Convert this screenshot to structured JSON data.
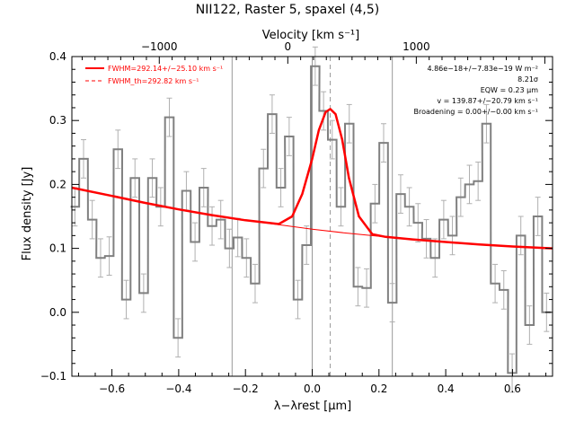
{
  "chart_data": {
    "type": "line",
    "title": "NII122, Raster 5, spaxel (4,5)",
    "xlabel": "λ−λrest [μm]",
    "ylabel": "Flux density [Jy]",
    "top_axis_label": "Velocity [km s⁻¹]",
    "xlim": [
      -0.72,
      0.72
    ],
    "ylim": [
      -0.1,
      0.4
    ],
    "vlim": [
      -1680,
      2060
    ],
    "x_ticks": [
      -0.6,
      -0.4,
      -0.2,
      0.0,
      0.2,
      0.4,
      0.6
    ],
    "x_tick_labels": [
      "−0.6",
      "−0.4",
      "−0.2",
      "0.0",
      "0.2",
      "0.4",
      "0.6"
    ],
    "y_ticks": [
      -0.1,
      0.0,
      0.1,
      0.2,
      0.3,
      0.4
    ],
    "y_tick_labels": [
      "−0.1",
      "0.0",
      "0.1",
      "0.2",
      "0.3",
      "0.4"
    ],
    "v_ticks": [
      -1000,
      0,
      1000
    ],
    "v_tick_labels": [
      "−1000",
      "0",
      "1000"
    ],
    "vertical_lines_solid": [
      -0.24,
      0.0,
      0.24
    ],
    "vertical_line_dashed": 0.054,
    "legend": {
      "placement": "top-left",
      "entries": [
        {
          "text": "FWHM=292.14+/−25.10 km s⁻¹",
          "style": "solid"
        },
        {
          "text": "FWHM_th=292.82 km s⁻¹",
          "style": "dashed"
        }
      ]
    },
    "annotations": [
      "4.86e−18+/−7.83e−19 W m⁻²",
      "8.21σ",
      "EQW = 0.23 μm",
      "v = 139.87+/−20.79 km s⁻¹",
      "Broadening = 0.00+/−0.00 km s⁻¹"
    ],
    "grid": false,
    "colors": {
      "data": "#808080",
      "fit": "#ff0000",
      "errorbar": "#b0b0b0",
      "axes": "#000000"
    },
    "series": [
      {
        "name": "data",
        "step": true,
        "bin_width": 0.0257,
        "x": [
          -0.711,
          -0.685,
          -0.659,
          -0.634,
          -0.608,
          -0.582,
          -0.557,
          -0.531,
          -0.505,
          -0.479,
          -0.454,
          -0.428,
          -0.402,
          -0.377,
          -0.351,
          -0.325,
          -0.3,
          -0.274,
          -0.248,
          -0.223,
          -0.197,
          -0.171,
          -0.146,
          -0.12,
          -0.094,
          -0.069,
          -0.043,
          -0.017,
          0.009,
          0.034,
          0.06,
          0.086,
          0.111,
          0.137,
          0.163,
          0.188,
          0.214,
          0.24,
          0.265,
          0.291,
          0.317,
          0.342,
          0.368,
          0.394,
          0.42,
          0.445,
          0.471,
          0.497,
          0.522,
          0.548,
          0.574,
          0.599,
          0.625,
          0.651,
          0.676,
          0.702
        ],
        "y": [
          0.165,
          0.24,
          0.145,
          0.085,
          0.088,
          0.255,
          0.02,
          0.21,
          0.03,
          0.21,
          0.165,
          0.305,
          -0.04,
          0.19,
          0.11,
          0.195,
          0.135,
          0.145,
          0.1,
          0.117,
          0.085,
          0.045,
          0.225,
          0.31,
          0.195,
          0.275,
          0.02,
          0.105,
          0.385,
          0.315,
          0.27,
          0.165,
          0.295,
          0.04,
          0.038,
          0.17,
          0.265,
          0.015,
          0.185,
          0.165,
          0.14,
          0.115,
          0.085,
          0.145,
          0.12,
          0.18,
          0.2,
          0.205,
          0.295,
          0.045,
          0.035,
          -0.095,
          0.12,
          -0.02,
          0.15,
          0.0
        ],
        "err": [
          0.03,
          0.03,
          0.03,
          0.03,
          0.03,
          0.03,
          0.03,
          0.03,
          0.03,
          0.03,
          0.03,
          0.03,
          0.03,
          0.03,
          0.03,
          0.03,
          0.03,
          0.03,
          0.03,
          0.03,
          0.03,
          0.03,
          0.03,
          0.03,
          0.03,
          0.03,
          0.03,
          0.03,
          0.03,
          0.03,
          0.03,
          0.03,
          0.03,
          0.03,
          0.03,
          0.03,
          0.03,
          0.03,
          0.03,
          0.03,
          0.03,
          0.03,
          0.03,
          0.03,
          0.03,
          0.03,
          0.03,
          0.03,
          0.03,
          0.03,
          0.03,
          0.03,
          0.03,
          0.03,
          0.03,
          0.03
        ]
      },
      {
        "name": "continuum",
        "x": [
          -0.72,
          -0.6,
          -0.5,
          -0.4,
          -0.3,
          -0.2,
          -0.1,
          0.0,
          0.1,
          0.2,
          0.3,
          0.4,
          0.5,
          0.6,
          0.72
        ],
        "y": [
          0.195,
          0.182,
          0.171,
          0.161,
          0.152,
          0.144,
          0.137,
          0.13,
          0.124,
          0.119,
          0.114,
          0.11,
          0.106,
          0.103,
          0.1
        ]
      },
      {
        "name": "fit",
        "x": [
          -0.72,
          -0.6,
          -0.5,
          -0.4,
          -0.3,
          -0.2,
          -0.1,
          -0.06,
          -0.03,
          0.0,
          0.02,
          0.04,
          0.054,
          0.07,
          0.09,
          0.11,
          0.14,
          0.18,
          0.22,
          0.3,
          0.4,
          0.5,
          0.6,
          0.72
        ],
        "y": [
          0.195,
          0.182,
          0.171,
          0.161,
          0.152,
          0.144,
          0.138,
          0.15,
          0.185,
          0.24,
          0.285,
          0.313,
          0.318,
          0.31,
          0.27,
          0.21,
          0.15,
          0.122,
          0.118,
          0.114,
          0.11,
          0.106,
          0.103,
          0.1
        ]
      }
    ]
  }
}
